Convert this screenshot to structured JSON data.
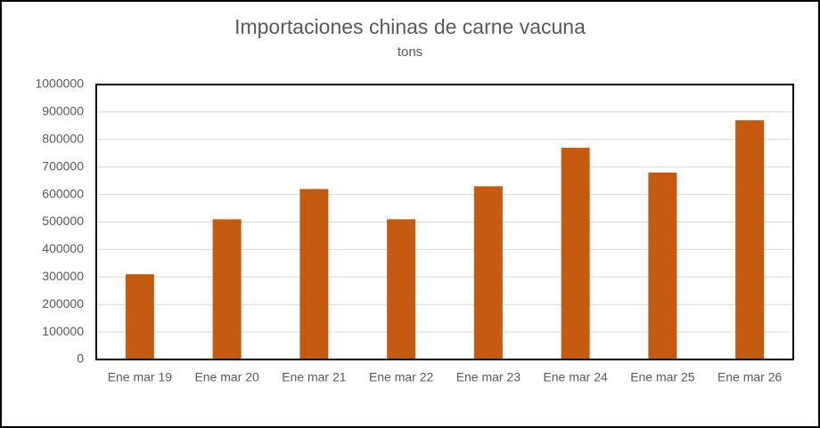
{
  "chart_data": {
    "type": "bar",
    "title": "Importaciones chinas de carne vacuna",
    "subtitle": "tons",
    "categories": [
      "Ene mar 19",
      "Ene mar 20",
      "Ene mar 21",
      "Ene mar 22",
      "Ene mar 23",
      "Ene mar 24",
      "Ene mar 25",
      "Ene mar 26"
    ],
    "values": [
      310000,
      510000,
      620000,
      510000,
      630000,
      770000,
      680000,
      870000
    ],
    "color": "#c55a11",
    "ylim": [
      0,
      1000000
    ],
    "yticks": [
      0,
      100000,
      200000,
      300000,
      400000,
      500000,
      600000,
      700000,
      800000,
      900000,
      1000000
    ],
    "grid": true
  }
}
